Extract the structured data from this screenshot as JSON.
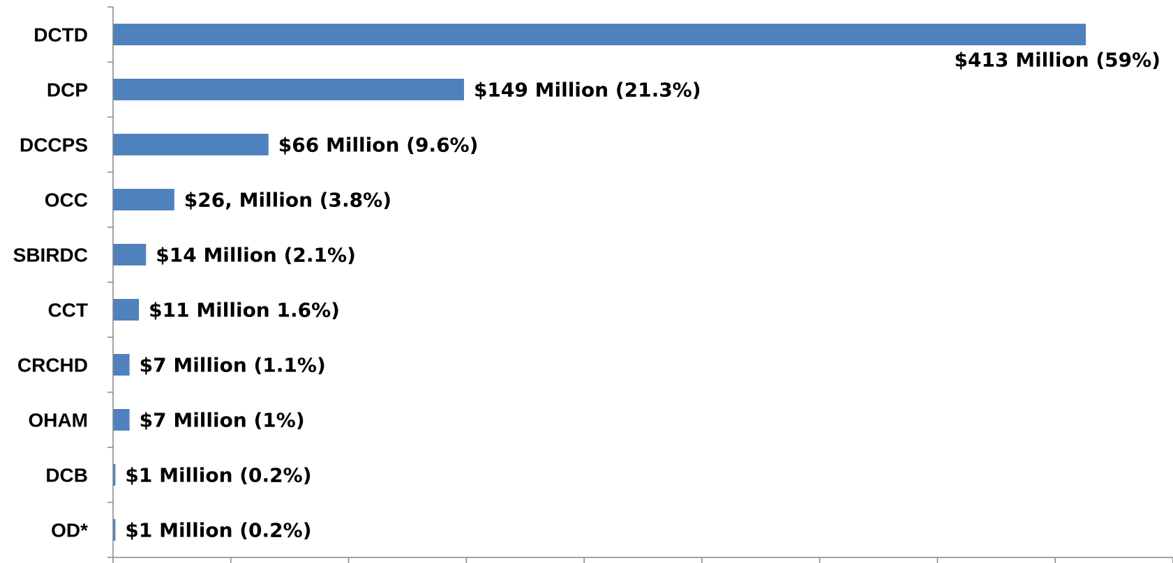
{
  "chart_data": {
    "type": "bar",
    "orientation": "horizontal",
    "categories": [
      "DCTD",
      "DCP",
      "DCCPS",
      "OCC",
      "SBIRDC",
      "CCT",
      "CRCHD",
      "OHAM",
      "DCB",
      "OD*"
    ],
    "values": [
      413,
      149,
      66,
      26,
      14,
      11,
      7,
      7,
      1,
      1
    ],
    "data_labels": [
      "$413 Million (59%)",
      "$149 Million (21.3%)",
      "$66 Million (9.6%)",
      "$26, Million (3.8%)",
      "$14 Million (2.1%)",
      "$11 Million 1.6%)",
      "$7 Million (1.1%)",
      "$7 Million (1%)",
      "$1 Million  (0.2%)",
      "$1  Million (0.2%)"
    ],
    "xlim": [
      0,
      450
    ],
    "x_tick_step": 50,
    "title": "",
    "xlabel": "",
    "ylabel": "",
    "grid": false,
    "legend": "none",
    "bar_color": "#4f81bd",
    "axis_color": "#868686"
  }
}
